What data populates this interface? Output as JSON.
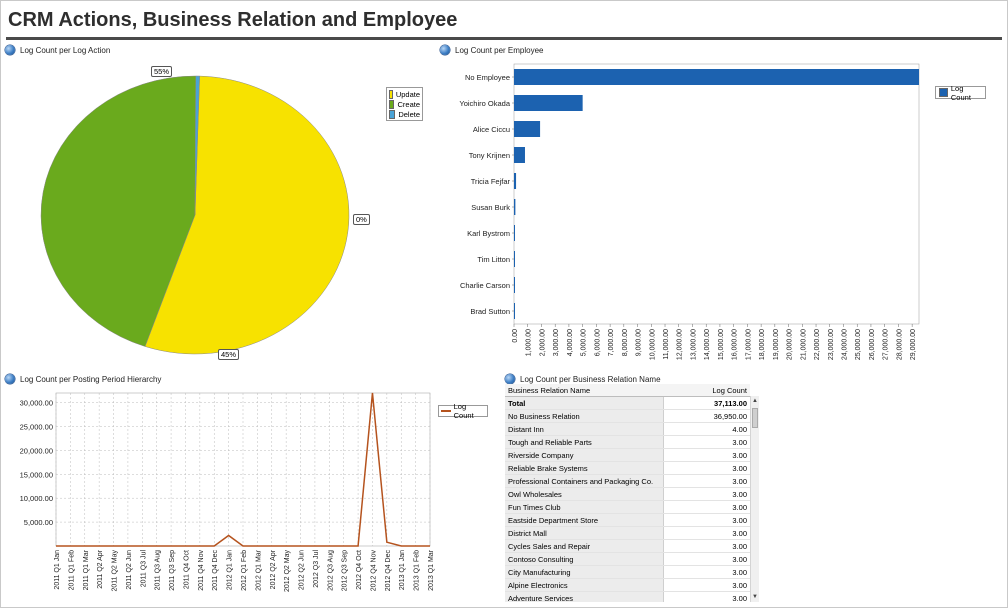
{
  "page": {
    "title": "CRM Actions, Business Relation and Employee"
  },
  "panels": {
    "pie": "Log Count per Log Action",
    "bar": "Log Count per Employee",
    "line": "Log Count per Posting Period Hierarchy",
    "table": "Log Count per Business Relation Name"
  },
  "colors": {
    "update": "#f7e200",
    "create": "#6aaa1d",
    "delete": "#4aa3d6",
    "bar": "#1c62b0",
    "line": "#b5531e"
  },
  "chart_data": [
    {
      "type": "pie",
      "slices": [
        {
          "name": "Update",
          "value": 55,
          "label": "55%"
        },
        {
          "name": "Create",
          "value": 45,
          "label": "45%"
        },
        {
          "name": "Delete",
          "value": 0.4,
          "label": "0%"
        }
      ],
      "legend": [
        "Update",
        "Create",
        "Delete"
      ],
      "legend_position": "right"
    },
    {
      "type": "bar",
      "orientation": "horizontal",
      "categories": [
        "No Employee",
        "Yoichiro Okada",
        "Alice Ciccu",
        "Tony Krijnen",
        "Tricia Fejfar",
        "Susan Burk",
        "Karl Bystrom",
        "Tim  Litton",
        "Charlie Carson",
        "Brad Sutton"
      ],
      "series": [
        {
          "name": "Log Count",
          "values": [
            29500,
            5000,
            1900,
            800,
            150,
            100,
            60,
            40,
            30,
            20
          ]
        }
      ],
      "xlim": [
        0,
        29500
      ],
      "xticks": [
        "0.00",
        "1,000.00",
        "2,000.00",
        "3,000.00",
        "4,000.00",
        "5,000.00",
        "6,000.00",
        "7,000.00",
        "8,000.00",
        "9,000.00",
        "10,000.00",
        "11,000.00",
        "12,000.00",
        "13,000.00",
        "14,000.00",
        "15,000.00",
        "16,000.00",
        "17,000.00",
        "18,000.00",
        "19,000.00",
        "20,000.00",
        "21,000.00",
        "22,000.00",
        "23,000.00",
        "24,000.00",
        "25,000.00",
        "26,000.00",
        "27,000.00",
        "28,000.00",
        "29,000.00"
      ],
      "legend_position": "right"
    },
    {
      "type": "line",
      "x": [
        "2011 Q1 Jan",
        "2011 Q1 Feb",
        "2011 Q1 Mar",
        "2011 Q2 Apr",
        "2011 Q2 May",
        "2011 Q2 Jun",
        "2011 Q3 Jul",
        "2011 Q3 Aug",
        "2011 Q3 Sep",
        "2011 Q4 Oct",
        "2011 Q4 Nov",
        "2011 Q4 Dec",
        "2012 Q1 Jan",
        "2012 Q1 Feb",
        "2012 Q1 Mar",
        "2012 Q2 Apr",
        "2012 Q2 May",
        "2012 Q2 Jun",
        "2012 Q3 Jul",
        "2012 Q3 Aug",
        "2012 Q3 Sep",
        "2012 Q4 Oct",
        "2012 Q4 Nov",
        "2012 Q4 Dec",
        "2013 Q1 Jan",
        "2013 Q1 Feb",
        "2013 Q1 Mar"
      ],
      "series": [
        {
          "name": "Log Count",
          "values": [
            0,
            0,
            0,
            0,
            0,
            0,
            0,
            0,
            0,
            0,
            0,
            0,
            2200,
            0,
            0,
            0,
            0,
            0,
            0,
            0,
            0,
            0,
            32000,
            800,
            0,
            0,
            0
          ]
        }
      ],
      "ylim": [
        0,
        32000
      ],
      "yticks": [
        "5,000.00",
        "10,000.00",
        "15,000.00",
        "20,000.00",
        "25,000.00",
        "30,000.00"
      ],
      "grid": true,
      "legend_position": "right"
    }
  ],
  "table": {
    "headers": [
      "Business Relation Name",
      "Log Count"
    ],
    "rows": [
      [
        "Total",
        "37,113.00"
      ],
      [
        "No Business Relation",
        "36,950.00"
      ],
      [
        "Distant Inn",
        "4.00"
      ],
      [
        "Tough and Reliable Parts",
        "3.00"
      ],
      [
        "Riverside Company",
        "3.00"
      ],
      [
        "Reliable Brake Systems",
        "3.00"
      ],
      [
        "Professional Containers and Packaging Co.",
        "3.00"
      ],
      [
        "Owl Wholesales",
        "3.00"
      ],
      [
        "Fun Times Club",
        "3.00"
      ],
      [
        "Eastside Department Store",
        "3.00"
      ],
      [
        "District Mall",
        "3.00"
      ],
      [
        "Cycles Sales and Repair",
        "3.00"
      ],
      [
        "Contoso Consulting",
        "3.00"
      ],
      [
        "City Manufacturing",
        "3.00"
      ],
      [
        "Alpine Electronics",
        "3.00"
      ],
      [
        "Adventure Services",
        "3.00"
      ]
    ]
  }
}
